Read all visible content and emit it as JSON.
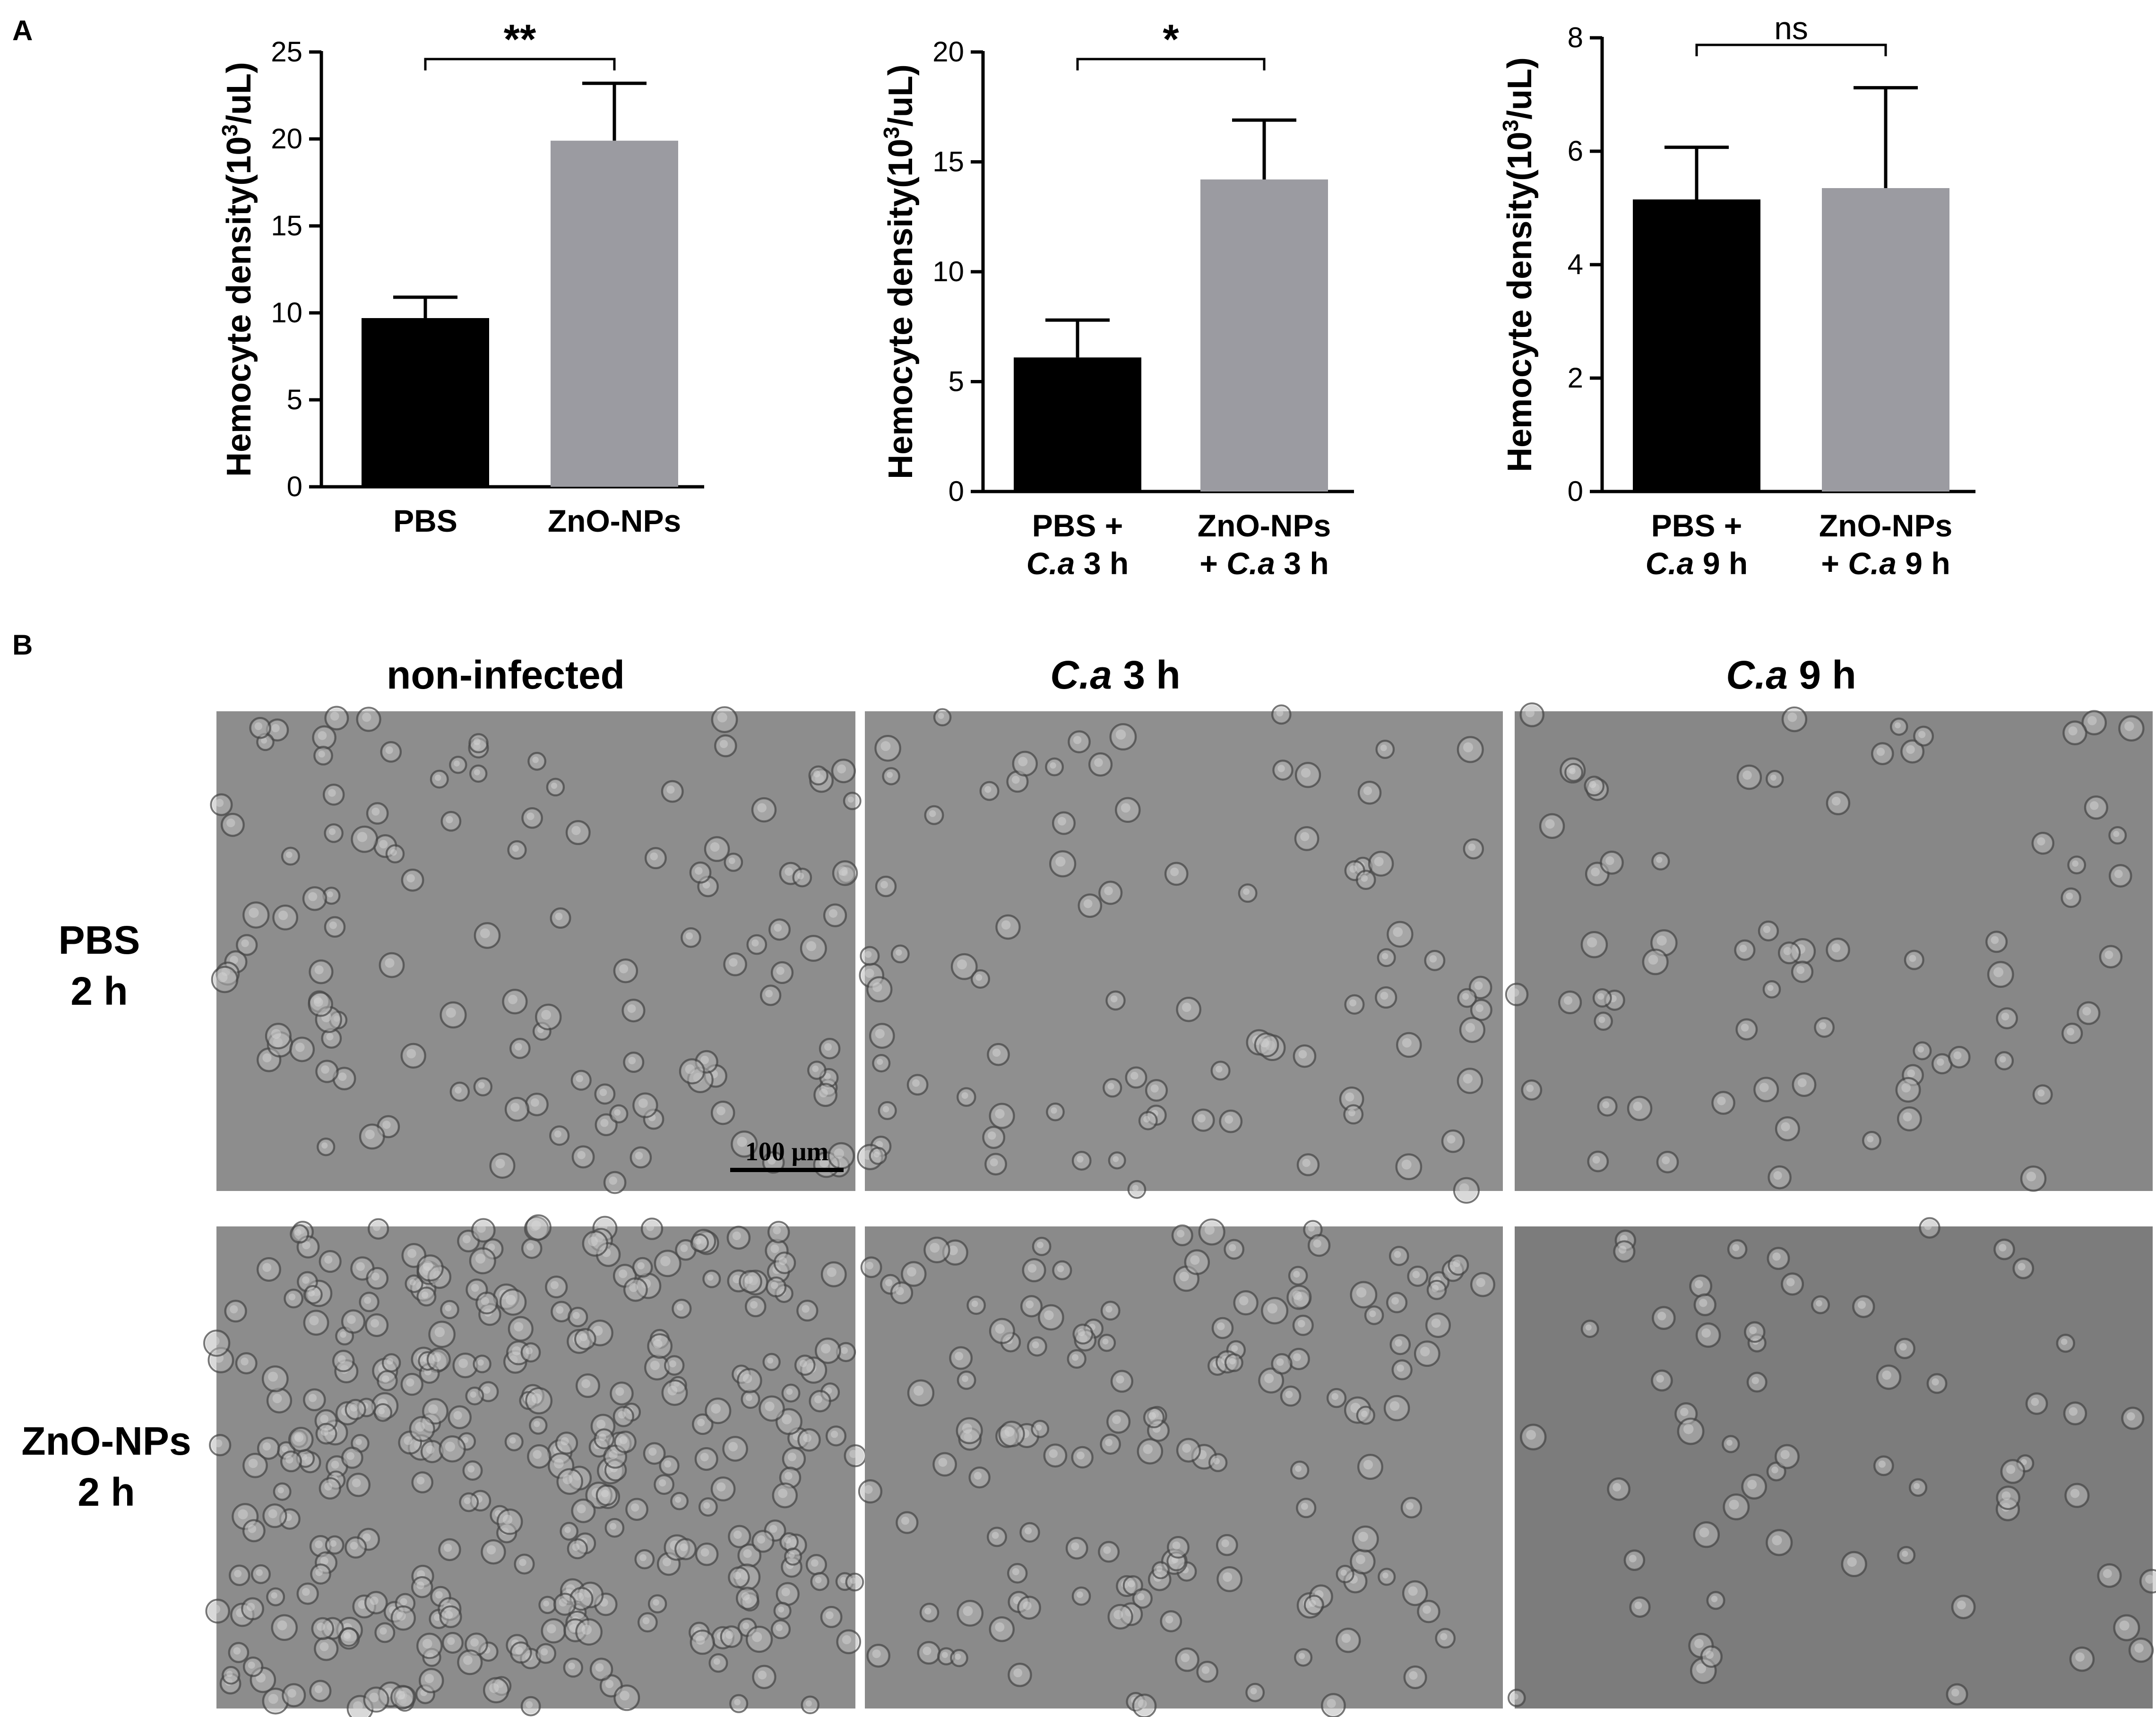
{
  "figure": {
    "panel_a_label": "A",
    "panel_b_label": "B"
  },
  "chart_data": [
    {
      "type": "bar",
      "ylabel_main": "Hemocyte density(10",
      "ylabel_sup": "3",
      "ylabel_tail": "/uL)",
      "ylim": [
        0,
        25
      ],
      "yticks": [
        0,
        5,
        10,
        15,
        20,
        25
      ],
      "categories": [
        {
          "lines": [
            {
              "parts": [
                {
                  "t": "PBS",
                  "i": false
                }
              ]
            }
          ]
        },
        {
          "lines": [
            {
              "parts": [
                {
                  "t": "ZnO-NPs",
                  "i": false
                }
              ]
            }
          ]
        }
      ],
      "values": [
        9.7,
        19.9
      ],
      "errors": [
        1.2,
        3.3
      ],
      "colors": [
        "#000000",
        "#9b9ba1"
      ],
      "significance": "**"
    },
    {
      "type": "bar",
      "ylabel_main": "Hemocyte density(10",
      "ylabel_sup": "3",
      "ylabel_tail": "/uL)",
      "ylim": [
        0,
        20
      ],
      "yticks": [
        0,
        5,
        10,
        15,
        20
      ],
      "categories": [
        {
          "lines": [
            {
              "parts": [
                {
                  "t": "PBS +",
                  "i": false
                }
              ]
            },
            {
              "parts": [
                {
                  "t": "C.a",
                  "i": true
                },
                {
                  "t": " 3 h",
                  "i": false
                }
              ]
            }
          ]
        },
        {
          "lines": [
            {
              "parts": [
                {
                  "t": "ZnO-NPs",
                  "i": false
                }
              ]
            },
            {
              "parts": [
                {
                  "t": "+ ",
                  "i": false
                },
                {
                  "t": "C.a",
                  "i": true
                },
                {
                  "t": " 3 h",
                  "i": false
                }
              ]
            }
          ]
        }
      ],
      "values": [
        6.1,
        14.2
      ],
      "errors": [
        1.7,
        2.7
      ],
      "colors": [
        "#000000",
        "#9b9ba1"
      ],
      "significance": "*"
    },
    {
      "type": "bar",
      "ylabel_main": "Hemocyte density(10",
      "ylabel_sup": "3",
      "ylabel_tail": "/uL)",
      "ylim": [
        0,
        8
      ],
      "yticks": [
        0,
        2,
        4,
        6,
        8
      ],
      "categories": [
        {
          "lines": [
            {
              "parts": [
                {
                  "t": "PBS +",
                  "i": false
                }
              ]
            },
            {
              "parts": [
                {
                  "t": "C.a",
                  "i": true
                },
                {
                  "t": " 9 h",
                  "i": false
                }
              ]
            }
          ]
        },
        {
          "lines": [
            {
              "parts": [
                {
                  "t": "ZnO-NPs",
                  "i": false
                }
              ]
            },
            {
              "parts": [
                {
                  "t": "+ ",
                  "i": false
                },
                {
                  "t": "C.a",
                  "i": true
                },
                {
                  "t": " 9 h",
                  "i": false
                }
              ]
            }
          ]
        }
      ],
      "values": [
        5.15,
        5.35
      ],
      "errors": [
        0.92,
        1.77
      ],
      "colors": [
        "#000000",
        "#9b9ba1"
      ],
      "significance": "ns"
    }
  ],
  "micrographs": {
    "columns": [
      {
        "parts": [
          {
            "t": "non-infected",
            "i": false
          }
        ]
      },
      {
        "parts": [
          {
            "t": "C.a",
            "i": true
          },
          {
            "t": " 3 h",
            "i": false
          }
        ]
      },
      {
        "parts": [
          {
            "t": "C.a",
            "i": true
          },
          {
            "t": " 9 h",
            "i": false
          }
        ]
      }
    ],
    "rows": [
      {
        "line1": "PBS",
        "line2": "2 h"
      },
      {
        "line1": "ZnO-NPs",
        "line2": "2 h"
      }
    ],
    "scale_bar_label": "100 μm",
    "background_colors": [
      "#8d8d8d",
      "#8f8f8f",
      "#878787",
      "#8c8c8c",
      "#8a8a8a",
      "#7c7c7c"
    ]
  }
}
